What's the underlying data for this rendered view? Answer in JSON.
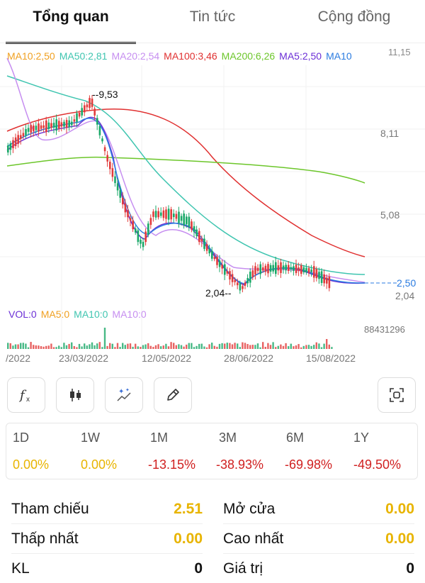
{
  "tabs": [
    {
      "label": "Tổng quan",
      "active": true
    },
    {
      "label": "Tin tức",
      "active": false
    },
    {
      "label": "Cộng đồng",
      "active": false
    }
  ],
  "ma_legend": [
    {
      "label": "MA10:2,50",
      "color": "#f0a020"
    },
    {
      "label": "MA50:2,81",
      "color": "#3fc5b0"
    },
    {
      "label": "MA20:2,54",
      "color": "#c68ef0"
    },
    {
      "label": "MA100:3,46",
      "color": "#e03030"
    },
    {
      "label": "MA200:6,26",
      "color": "#6cc62a"
    },
    {
      "label": "MA5:2,50",
      "color": "#6b2fd6"
    },
    {
      "label": "MA10",
      "color": "#2a7be0"
    }
  ],
  "price_axis": {
    "top": "11,15",
    "mid1": "8,11",
    "mid2": "5,08",
    "current": "2,50",
    "bottom": "2,04"
  },
  "annotations": {
    "high": "9,53",
    "low": "2,04"
  },
  "vol_legend": [
    {
      "label": "VOL:0",
      "color": "#6b2fd6"
    },
    {
      "label": "MA5:0",
      "color": "#f0a020"
    },
    {
      "label": "MA10:0",
      "color": "#3fc5b0"
    },
    {
      "label": "MA10:0",
      "color": "#c68ef0"
    }
  ],
  "vol_axis_max": "88431296",
  "dates": [
    "/2022",
    "23/03/2022",
    "12/05/2022",
    "28/06/2022",
    "15/08/2022"
  ],
  "toolbar": {
    "function_icon": "function-icon",
    "candle_icon": "candlestick-icon",
    "magic_icon": "magic-chart-icon",
    "draw_icon": "pencil-icon",
    "screenshot_icon": "screenshot-icon"
  },
  "periods": [
    {
      "label": "1D",
      "value": "0.00%",
      "color": "#e8b400"
    },
    {
      "label": "1W",
      "value": "0.00%",
      "color": "#e8b400"
    },
    {
      "label": "1M",
      "value": "-13.15%",
      "color": "#d02020"
    },
    {
      "label": "3M",
      "value": "-38.93%",
      "color": "#d02020"
    },
    {
      "label": "6M",
      "value": "-69.98%",
      "color": "#d02020"
    },
    {
      "label": "1Y",
      "value": "-49.50%",
      "color": "#d02020"
    }
  ],
  "stats": {
    "reference_label": "Tham chiếu",
    "reference_value": "2.51",
    "open_label": "Mở cửa",
    "open_value": "0.00",
    "low_label": "Thấp nhất",
    "low_value": "0.00",
    "high_label": "Cao nhất",
    "high_value": "0.00",
    "volume_label": "KL",
    "volume_value": "0",
    "trade_value_label": "Giá trị",
    "trade_value_value": "0"
  },
  "colors": {
    "up": "#1aa868",
    "down": "#e23b3b",
    "accent": "#e8b400"
  }
}
